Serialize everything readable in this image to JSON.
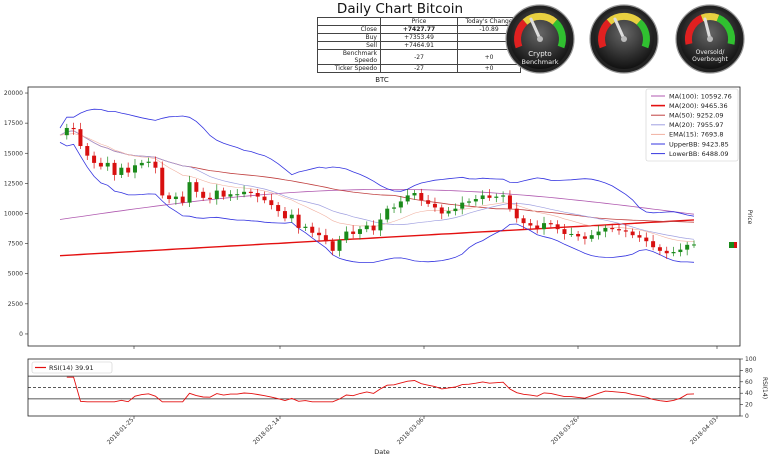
{
  "title": "Daily Chart Bitcoin",
  "stats": {
    "headers": [
      "",
      "Price",
      "Today's Change"
    ],
    "rows": [
      {
        "label": "Close",
        "price": "+7427.77",
        "change": "-10.89"
      },
      {
        "label": "Buy",
        "price": "+7353.49",
        "change": ""
      },
      {
        "label": "Sell",
        "price": "+7464.91",
        "change": ""
      },
      {
        "label": "Benchmark Speedo",
        "price": "-27",
        "change": "+0"
      },
      {
        "label": "Ticker Speedo",
        "price": "-27",
        "change": "+0"
      }
    ]
  },
  "gauges": [
    {
      "label_line1": "Crypto",
      "label_line2": "Benchmark",
      "needle_value": -27
    },
    {
      "label_line1": "",
      "label_line2": "",
      "needle_value": -27
    },
    {
      "label_line1": "Oversold/",
      "label_line2": "Overbought",
      "needle_value": 39.91
    }
  ],
  "chart_data": [
    {
      "type": "line",
      "title": "BTC",
      "xlabel": "Date",
      "ylabel": "Price",
      "ylim": [
        -1000,
        20500
      ],
      "yticks": [
        0,
        2500,
        5000,
        7500,
        10000,
        12500,
        15000,
        17500,
        20000
      ],
      "xticks": [
        "2018-01-25",
        "2018-02-14",
        "2018-03-06",
        "2018-03-26",
        "2018-04-03"
      ],
      "grid": false,
      "legend_position": "top-right",
      "close": [
        16500,
        17100,
        17000,
        15600,
        14800,
        14200,
        13900,
        14200,
        13200,
        13800,
        13400,
        14000,
        14200,
        14300,
        13800,
        11500,
        11200,
        11400,
        10900,
        12600,
        11800,
        11300,
        11200,
        11900,
        11400,
        11600,
        11600,
        11800,
        11700,
        11400,
        11100,
        10700,
        10200,
        9600,
        9900,
        8800,
        8900,
        8400,
        8200,
        7700,
        6900,
        7800,
        8500,
        8300,
        8700,
        9000,
        8600,
        9500,
        10400,
        10500,
        11000,
        11500,
        11700,
        11100,
        10800,
        10500,
        10000,
        10200,
        10400,
        10900,
        11000,
        11200,
        11500,
        11300,
        11400,
        11500,
        10400,
        9600,
        9200,
        9000,
        8700,
        9200,
        9100,
        8700,
        8300,
        8300,
        8100,
        7900,
        8200,
        8500,
        8800,
        8700,
        8600,
        8500,
        8200,
        8000,
        7700,
        7200,
        6900,
        6700,
        6800,
        7000,
        7400,
        7427
      ]
    },
    {
      "type": "line",
      "ylabel": "RSI(14)",
      "ylim": [
        0,
        100
      ],
      "yticks": [
        0,
        20,
        40,
        60,
        80,
        100
      ],
      "upper": 70,
      "mid": 50,
      "lower": 30
    }
  ],
  "series_style": {
    "ma100": {
      "name": "MA(100): 10592.76",
      "color": "#b05ab0"
    },
    "ma200": {
      "name": "MA(200): 9465.36",
      "color": "#e31010"
    },
    "ma50": {
      "name": "MA(50): 9252.09",
      "color": "#c04040"
    },
    "ma20": {
      "name": "MA(20): 7955.97",
      "color": "#a0a0e0"
    },
    "ema15": {
      "name": "EMA(15): 7693.8",
      "color": "#f0b0a0"
    },
    "upperbb": {
      "name": "UpperBB: 9423.85",
      "color": "#3535e0"
    },
    "lowerbb": {
      "name": "LowerBB: 6488.09",
      "color": "#3535e0"
    },
    "rsi": {
      "name": "RSI(14) 39.91",
      "color": "#e31010"
    },
    "candle_up": "#1a8a1a",
    "candle_down": "#d81010"
  }
}
